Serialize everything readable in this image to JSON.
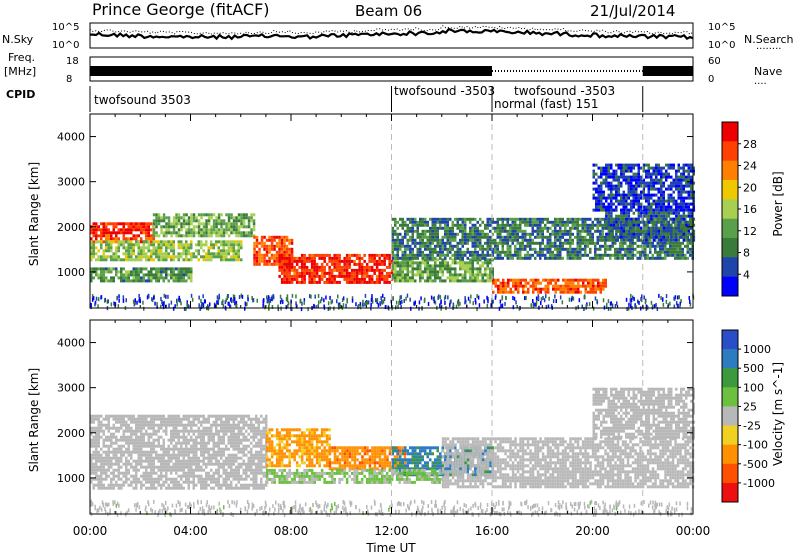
{
  "header": {
    "station": "Prince George (fitACF)",
    "beam": "Beam 06",
    "date": "21/Jul/2014"
  },
  "strip_labels": {
    "nsky": "N.Sky",
    "nsearch": "N.Search",
    "nsearch_key": "........",
    "freq_line1": "Freq.",
    "freq_line2": "[MHz]",
    "nave": "Nave",
    "nave_key": "....",
    "cpid": "CPID"
  },
  "strip_ticks": {
    "nsky_left": [
      "10^5",
      "10^0"
    ],
    "nsearch_right": [
      "10^5",
      "10^0"
    ],
    "freq_left": [
      "18",
      "8"
    ],
    "nave_right": [
      "60",
      "0"
    ]
  },
  "cpid_segments": [
    {
      "label": "twofsound 3503",
      "start_h": 0.0,
      "end_h": 12.0
    },
    {
      "label": "twofsound -3503",
      "start_h": 12.0,
      "end_h": 16.0
    },
    {
      "label": "normal (fast) 151",
      "start_h": 16.0,
      "end_h": 22.0
    },
    {
      "label": "twofsound -3503",
      "start_h": 16.0,
      "end_h": 22.0
    }
  ],
  "colors": {
    "power": [
      "#0000ff",
      "#1f44aa",
      "#3a7a3a",
      "#5aa04a",
      "#a8d050",
      "#f0c800",
      "#ff8000",
      "#ff4000",
      "#ee0000"
    ],
    "velocity": [
      "#2a4ec8",
      "#2e7cc0",
      "#3c9a3c",
      "#6cc040",
      "#b8b8b8",
      "#f0d020",
      "#ff9000",
      "#ff5000",
      "#ee1010"
    ]
  },
  "chart_data": [
    {
      "type": "heatmap",
      "title": "Power",
      "ylabel": "Slant Range [km]",
      "xlim_hours": [
        0,
        24
      ],
      "ylim": [
        200,
        4500
      ],
      "yticks": [
        "1000",
        "2000",
        "3000",
        "4000"
      ],
      "colorbar_label": "Power [dB]",
      "colorbar_ticks": [
        "4",
        "8",
        "12",
        "16",
        "20",
        "24",
        "28"
      ],
      "colorbar_range": [
        0,
        30
      ],
      "bands": [
        {
          "x0": 0.0,
          "x1": 2.5,
          "y0": 1700,
          "y1": 2100,
          "value": 26
        },
        {
          "x0": 0.0,
          "x1": 6.0,
          "y0": 1300,
          "y1": 1700,
          "value": 14
        },
        {
          "x0": 2.5,
          "x1": 6.5,
          "y0": 1800,
          "y1": 2300,
          "value": 12
        },
        {
          "x0": 0.0,
          "x1": 4.0,
          "y0": 800,
          "y1": 1100,
          "value": 10
        },
        {
          "x0": 6.5,
          "x1": 8.0,
          "y0": 1200,
          "y1": 1800,
          "value": 24
        },
        {
          "x0": 7.5,
          "x1": 12.0,
          "y0": 800,
          "y1": 1400,
          "value": 27
        },
        {
          "x0": 12.0,
          "x1": 16.0,
          "y0": 800,
          "y1": 1300,
          "value": 12
        },
        {
          "x0": 16.0,
          "x1": 20.5,
          "y0": 550,
          "y1": 850,
          "value": 24
        },
        {
          "x0": 12.0,
          "x1": 24.0,
          "y0": 1300,
          "y1": 2200,
          "value": 8
        },
        {
          "x0": 20.5,
          "x1": 24.0,
          "y0": 1700,
          "y1": 2400,
          "value": 6
        },
        {
          "x0": 20.0,
          "x1": 24.0,
          "y0": 2400,
          "y1": 3400,
          "value": 4
        }
      ]
    },
    {
      "type": "heatmap",
      "title": "Velocity",
      "xlabel": "Time UT",
      "ylabel": "Slant Range [km]",
      "xticks": [
        "00:00",
        "04:00",
        "08:00",
        "12:00",
        "16:00",
        "20:00",
        "00:00"
      ],
      "xlim_hours": [
        0,
        24
      ],
      "ylim": [
        200,
        4500
      ],
      "yticks": [
        "1000",
        "2000",
        "3000",
        "4000"
      ],
      "colorbar_label": "Velocity [m s^-1]",
      "colorbar_ticks": [
        "1000",
        "500",
        "100",
        "25",
        "-25",
        "-100",
        "-500",
        "-1000"
      ],
      "colorbar_range": [
        -1200,
        1200
      ],
      "bands": [
        {
          "x0": 0.0,
          "x1": 7.0,
          "y0": 800,
          "y1": 2400,
          "value": 0
        },
        {
          "x0": 7.0,
          "x1": 9.5,
          "y0": 1300,
          "y1": 2100,
          "value": -450
        },
        {
          "x0": 9.5,
          "x1": 12.5,
          "y0": 1200,
          "y1": 1700,
          "value": -600
        },
        {
          "x0": 12.0,
          "x1": 16.0,
          "y0": 1100,
          "y1": 1700,
          "value": 700
        },
        {
          "x0": 7.0,
          "x1": 14.0,
          "y0": 900,
          "y1": 1200,
          "value": 150
        },
        {
          "x0": 14.0,
          "x1": 24.0,
          "y0": 800,
          "y1": 1900,
          "value": 0
        },
        {
          "x0": 20.0,
          "x1": 24.0,
          "y0": 1900,
          "y1": 3000,
          "value": 0
        }
      ]
    }
  ]
}
